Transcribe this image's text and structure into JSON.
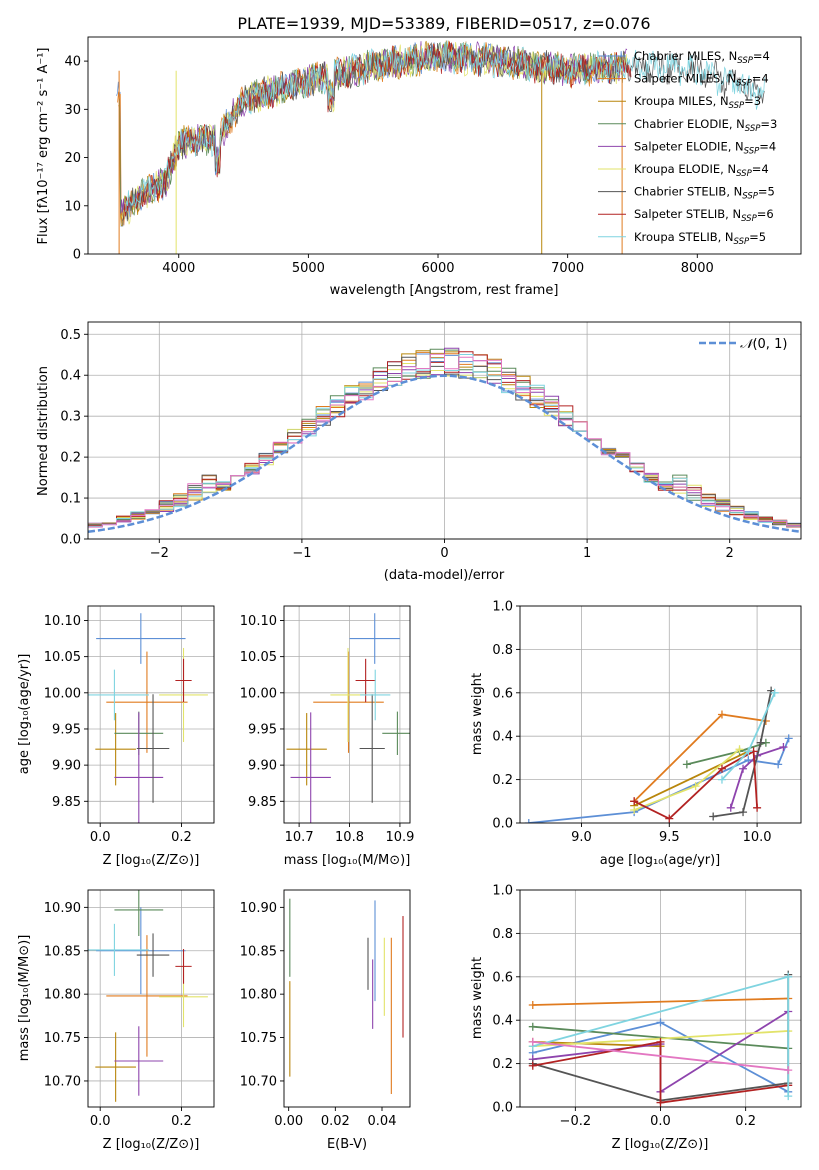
{
  "colors": [
    "#5d8fd6",
    "#e07b1f",
    "#b8860b",
    "#5a8a5a",
    "#8e44ad",
    "#e2e36a",
    "#555555",
    "#b22222",
    "#7fd4e0",
    "#e377c2"
  ],
  "chart_data": [
    {
      "id": "spectrum",
      "type": "line",
      "title": "PLATE=1939, MJD=53389, FIBERID=0517, z=0.076",
      "xlabel": "wavelength [Angstrom, rest frame]",
      "ylabel": "Flux [fλ10⁻¹⁷ erg cm⁻² s⁻¹ A⁻¹]",
      "xlim": [
        3300,
        8800
      ],
      "ylim": [
        0,
        45
      ],
      "xticks": [
        "4000",
        "5000",
        "6000",
        "7000",
        "8000"
      ],
      "yticks": [
        "0",
        "10",
        "20",
        "30",
        "40"
      ],
      "legend_position": "top-right",
      "series": [
        {
          "name": "Chabrier MILES, N_SSP=4",
          "color": "#5d8fd6"
        },
        {
          "name": "Salpeter MILES, N_SSP=4",
          "color": "#e07b1f"
        },
        {
          "name": "Kroupa MILES, N_SSP=3",
          "color": "#b8860b"
        },
        {
          "name": "Chabrier ELODIE, N_SSP=3",
          "color": "#5a8a5a"
        },
        {
          "name": "Salpeter ELODIE, N_SSP=4",
          "color": "#8e44ad"
        },
        {
          "name": "Kroupa ELODIE, N_SSP=4",
          "color": "#e2e36a"
        },
        {
          "name": "Chabrier STELIB, N_SSP=5",
          "color": "#555555"
        },
        {
          "name": "Salpeter STELIB, N_SSP=6",
          "color": "#b22222"
        },
        {
          "name": "Kroupa STELIB, N_SSP=5",
          "color": "#7fd4e0"
        }
      ],
      "continuum": [
        [
          3550,
          8
        ],
        [
          3700,
          12
        ],
        [
          3900,
          15
        ],
        [
          4000,
          23
        ],
        [
          4300,
          24
        ],
        [
          4500,
          32
        ],
        [
          5000,
          36
        ],
        [
          5500,
          39
        ],
        [
          6000,
          41
        ],
        [
          6500,
          40
        ],
        [
          7000,
          38
        ],
        [
          7500,
          39
        ],
        [
          8000,
          38
        ],
        [
          8500,
          33
        ]
      ]
    },
    {
      "id": "residuals",
      "type": "histogram",
      "xlabel": "(data-model)/error",
      "ylabel": "Normed distribution",
      "xlim": [
        -2.5,
        2.5
      ],
      "ylim": [
        0,
        0.53
      ],
      "xticks": [
        "−2",
        "−1",
        "0",
        "1",
        "2"
      ],
      "yticks": [
        "0.0",
        "0.1",
        "0.2",
        "0.3",
        "0.4",
        "0.5"
      ],
      "grid": true,
      "reference_curve": "N(0,1)",
      "bin_width": 0.1,
      "legend_position": "top-right"
    },
    {
      "id": "age_vs_Z",
      "type": "scatter",
      "xlabel": "Z [log₁₀(Z/Z⊙)]",
      "ylabel": "age  [log₁₀(age/yr)]",
      "xlim": [
        -0.03,
        0.28
      ],
      "ylim": [
        9.82,
        10.12
      ],
      "xticks": [
        "0.0",
        "0.2"
      ],
      "yticks": [
        "9.85",
        "9.90",
        "9.95",
        "10.00",
        "10.05",
        "10.10"
      ],
      "grid": true,
      "points": [
        {
          "x": 0.1,
          "y": 10.075,
          "xerr": 0.11,
          "yerr": 0.035
        },
        {
          "x": 0.115,
          "y": 9.987,
          "xerr": 0.1,
          "yerr": 0.07
        },
        {
          "x": 0.038,
          "y": 9.922,
          "xerr": 0.05,
          "yerr": 0.05
        },
        {
          "x": 0.095,
          "y": 9.944,
          "xerr": 0.06,
          "yerr": 0.03
        },
        {
          "x": 0.095,
          "y": 9.883,
          "xerr": 0.06,
          "yerr": 0.09
        },
        {
          "x": 0.205,
          "y": 9.997,
          "xerr": 0.06,
          "yerr": 0.065
        },
        {
          "x": 0.13,
          "y": 9.923,
          "xerr": 0.04,
          "yerr": 0.075
        },
        {
          "x": 0.205,
          "y": 10.017,
          "xerr": 0.02,
          "yerr": 0.03
        },
        {
          "x": 0.035,
          "y": 9.997,
          "xerr": 0.085,
          "yerr": 0.035
        }
      ]
    },
    {
      "id": "age_vs_mass",
      "type": "scatter",
      "xlabel": "mass [log₁₀(M/M⊙)]",
      "ylabel": "",
      "xlim": [
        10.67,
        10.92
      ],
      "ylim": [
        9.82,
        10.12
      ],
      "xticks": [
        "10.7",
        "10.8",
        "10.9"
      ],
      "yticks": [
        "9.85",
        "9.90",
        "9.95",
        "10.00",
        "10.05",
        "10.10"
      ],
      "grid": true,
      "points": [
        {
          "x": 10.85,
          "y": 10.075,
          "xerr": 0.05,
          "yerr": 0.035
        },
        {
          "x": 10.798,
          "y": 9.987,
          "xerr": 0.07,
          "yerr": 0.07
        },
        {
          "x": 10.715,
          "y": 9.922,
          "xerr": 0.04,
          "yerr": 0.05
        },
        {
          "x": 10.895,
          "y": 9.944,
          "xerr": 0.03,
          "yerr": 0.03
        },
        {
          "x": 10.723,
          "y": 9.883,
          "xerr": 0.04,
          "yerr": 0.09
        },
        {
          "x": 10.797,
          "y": 9.997,
          "xerr": 0.035,
          "yerr": 0.065
        },
        {
          "x": 10.845,
          "y": 9.923,
          "xerr": 0.025,
          "yerr": 0.075
        },
        {
          "x": 10.832,
          "y": 10.017,
          "xerr": 0.02,
          "yerr": 0.03
        },
        {
          "x": 10.851,
          "y": 9.997,
          "xerr": 0.03,
          "yerr": 0.035
        }
      ]
    },
    {
      "id": "weight_vs_age",
      "type": "line",
      "xlabel": "age  [log₁₀(age/yr)]",
      "ylabel": "mass weight",
      "xlim": [
        8.65,
        10.25
      ],
      "ylim": [
        0,
        1
      ],
      "xticks": [
        "9.0",
        "9.5",
        "10.0"
      ],
      "yticks": [
        "0.0",
        "0.2",
        "0.4",
        "0.6",
        "0.8",
        "1.0"
      ],
      "grid": true,
      "series": [
        {
          "points": [
            [
              8.7,
              0.0
            ],
            [
              9.3,
              0.05
            ],
            [
              9.95,
              0.29
            ],
            [
              10.12,
              0.27
            ],
            [
              10.18,
              0.39
            ]
          ]
        },
        {
          "points": [
            [
              9.3,
              0.1
            ],
            [
              9.8,
              0.5
            ],
            [
              10.05,
              0.47
            ]
          ]
        },
        {
          "points": [
            [
              9.3,
              0.08
            ],
            [
              9.95,
              0.33
            ]
          ]
        },
        {
          "points": [
            [
              9.6,
              0.27
            ],
            [
              9.9,
              0.33
            ],
            [
              10.05,
              0.37
            ]
          ]
        },
        {
          "points": [
            [
              9.85,
              0.07
            ],
            [
              9.92,
              0.25
            ],
            [
              10.0,
              0.31
            ],
            [
              10.15,
              0.35
            ]
          ]
        },
        {
          "points": [
            [
              9.3,
              0.06
            ],
            [
              9.65,
              0.17
            ],
            [
              9.9,
              0.34
            ]
          ]
        },
        {
          "points": [
            [
              9.75,
              0.03
            ],
            [
              9.92,
              0.05
            ],
            [
              10.02,
              0.37
            ],
            [
              10.08,
              0.61
            ]
          ]
        },
        {
          "points": [
            [
              9.3,
              0.1
            ],
            [
              9.5,
              0.02
            ],
            [
              9.8,
              0.25
            ],
            [
              9.98,
              0.33
            ],
            [
              10.0,
              0.07
            ]
          ]
        },
        {
          "points": [
            [
              9.8,
              0.2
            ],
            [
              9.95,
              0.33
            ],
            [
              10.1,
              0.6
            ]
          ]
        }
      ]
    },
    {
      "id": "mass_vs_Z",
      "type": "scatter",
      "xlabel": "Z [log₁₀(Z/Z⊙)]",
      "ylabel": "mass [log₁₀(M/M⊙)]",
      "xlim": [
        -0.03,
        0.28
      ],
      "ylim": [
        10.67,
        10.92
      ],
      "xticks": [
        "0.0",
        "0.2"
      ],
      "yticks": [
        "10.70",
        "10.75",
        "10.80",
        "10.85",
        "10.90"
      ],
      "grid": true,
      "points": [
        {
          "x": 0.1,
          "y": 10.85,
          "xerr": 0.11,
          "yerr": 0.05
        },
        {
          "x": 0.115,
          "y": 10.798,
          "xerr": 0.1,
          "yerr": 0.07
        },
        {
          "x": 0.038,
          "y": 10.716,
          "xerr": 0.05,
          "yerr": 0.04
        },
        {
          "x": 0.095,
          "y": 10.897,
          "xerr": 0.06,
          "yerr": 0.03
        },
        {
          "x": 0.095,
          "y": 10.723,
          "xerr": 0.06,
          "yerr": 0.04
        },
        {
          "x": 0.205,
          "y": 10.797,
          "xerr": 0.06,
          "yerr": 0.035
        },
        {
          "x": 0.13,
          "y": 10.845,
          "xerr": 0.04,
          "yerr": 0.025
        },
        {
          "x": 0.205,
          "y": 10.832,
          "xerr": 0.02,
          "yerr": 0.02
        },
        {
          "x": 0.035,
          "y": 10.851,
          "xerr": 0.085,
          "yerr": 0.03
        }
      ]
    },
    {
      "id": "mass_vs_ebv",
      "type": "scatter",
      "xlabel": "E(B-V)",
      "ylabel": "",
      "xlim": [
        -0.002,
        0.052
      ],
      "ylim": [
        10.67,
        10.92
      ],
      "xticks": [
        "0.00",
        "0.02",
        "0.04"
      ],
      "yticks": [
        "10.70",
        "10.75",
        "10.80",
        "10.85",
        "10.90"
      ],
      "grid": false,
      "points": [
        {
          "x": 0.037,
          "y": 10.85,
          "xerr": 0,
          "yerr": 0.058
        },
        {
          "x": 0.044,
          "y": 10.775,
          "xerr": 0,
          "yerr": 0.09
        },
        {
          "x": 0.0005,
          "y": 10.76,
          "xerr": 0,
          "yerr": 0.055
        },
        {
          "x": 0.0005,
          "y": 10.865,
          "xerr": 0,
          "yerr": 0.045
        },
        {
          "x": 0.036,
          "y": 10.8,
          "xerr": 0,
          "yerr": 0.04
        },
        {
          "x": 0.041,
          "y": 10.82,
          "xerr": 0,
          "yerr": 0.045
        },
        {
          "x": 0.034,
          "y": 10.835,
          "xerr": 0,
          "yerr": 0.03
        },
        {
          "x": 0.049,
          "y": 10.82,
          "xerr": 0,
          "yerr": 0.07
        }
      ]
    },
    {
      "id": "weight_vs_Z",
      "type": "line",
      "xlabel": "Z [log₁₀(Z/Z⊙)]",
      "ylabel": "mass weight",
      "xlim": [
        -0.33,
        0.33
      ],
      "ylim": [
        0,
        1
      ],
      "xticks": [
        "−0.2",
        "0.0",
        "0.2"
      ],
      "yticks": [
        "0.0",
        "0.2",
        "0.4",
        "0.6",
        "0.8",
        "1.0"
      ],
      "grid": true,
      "series": [
        {
          "points": [
            [
              -0.3,
              0.25
            ],
            [
              0.0,
              0.39
            ],
            [
              0.3,
              0.07
            ]
          ]
        },
        {
          "points": [
            [
              -0.3,
              0.47
            ],
            [
              0.3,
              0.5
            ]
          ]
        },
        {
          "points": [
            [
              -0.3,
              0.3
            ],
            [
              0.0,
              0.28
            ]
          ]
        },
        {
          "points": [
            [
              -0.3,
              0.37
            ],
            [
              0.3,
              0.27
            ]
          ]
        },
        {
          "points": [
            [
              -0.3,
              0.22
            ],
            [
              0.0,
              0.29
            ],
            [
              0.0,
              0.07
            ],
            [
              0.3,
              0.44
            ]
          ]
        },
        {
          "points": [
            [
              -0.3,
              0.28
            ],
            [
              0.3,
              0.35
            ]
          ]
        },
        {
          "points": [
            [
              -0.3,
              0.2
            ],
            [
              0.0,
              0.03
            ],
            [
              0.3,
              0.11
            ],
            [
              0.3,
              0.61
            ]
          ]
        },
        {
          "points": [
            [
              -0.3,
              0.19
            ],
            [
              0.0,
              0.3
            ],
            [
              0.0,
              0.02
            ],
            [
              0.3,
              0.1
            ]
          ]
        },
        {
          "points": [
            [
              -0.3,
              0.28
            ],
            [
              0.3,
              0.6
            ],
            [
              0.3,
              0.05
            ]
          ]
        },
        {
          "points": [
            [
              -0.3,
              0.3
            ],
            [
              0.3,
              0.17
            ]
          ]
        }
      ]
    }
  ]
}
